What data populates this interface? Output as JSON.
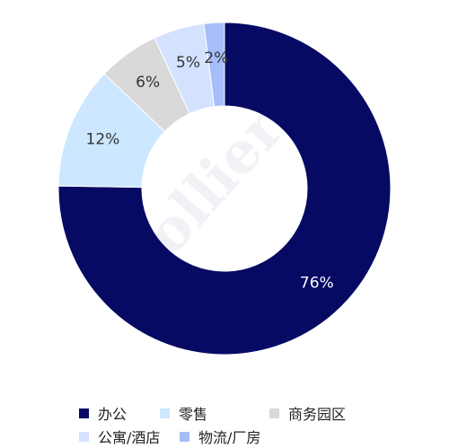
{
  "chart_data": {
    "type": "pie",
    "donut": true,
    "categories": [
      "办公",
      "零售",
      "商务园区",
      "公寓/酒店",
      "物流/厂房"
    ],
    "values": [
      76,
      12,
      6,
      5,
      2
    ],
    "labels": [
      "76%",
      "12%",
      "6%",
      "5%",
      "2%"
    ],
    "colors": [
      "#060a63",
      "#cce7ff",
      "#d9d9d9",
      "#d4e2ff",
      "#a7bdfa"
    ],
    "label_colors": [
      "#ffffff",
      "#333333",
      "#333333",
      "#333333",
      "#333333"
    ],
    "legend_position": "bottom"
  },
  "watermark": "Colliers"
}
